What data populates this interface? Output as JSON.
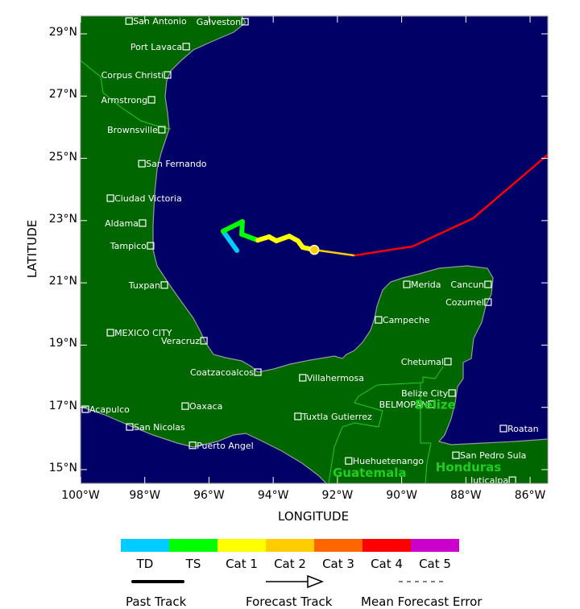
{
  "axes": {
    "xlabel": "LONGITUDE",
    "ylabel": "LATITUDE",
    "lon_range": [
      -100.0,
      -85.45
    ],
    "lat_range": [
      14.56,
      29.57
    ],
    "x_ticks": [
      {
        "lon": -100,
        "label": "100°W"
      },
      {
        "lon": -98,
        "label": "98°W"
      },
      {
        "lon": -96,
        "label": "96°W"
      },
      {
        "lon": -94,
        "label": "94°W"
      },
      {
        "lon": -92,
        "label": "92°W"
      },
      {
        "lon": -90,
        "label": "90°W"
      },
      {
        "lon": -88,
        "label": "88°W"
      },
      {
        "lon": -86,
        "label": "86°W"
      }
    ],
    "y_ticks": [
      {
        "lat": 29,
        "label": "29°N"
      },
      {
        "lat": 27,
        "label": "27°N"
      },
      {
        "lat": 25,
        "label": "25°N"
      },
      {
        "lat": 23,
        "label": "23°N"
      },
      {
        "lat": 21,
        "label": "21°N"
      },
      {
        "lat": 19,
        "label": "19°N"
      },
      {
        "lat": 17,
        "label": "17°N"
      },
      {
        "lat": 15,
        "label": "15°N"
      }
    ]
  },
  "colors": {
    "water": "#000066",
    "land": "#006600",
    "coast": "#9a9a9a",
    "border": "#22cc22",
    "country_label": "#22cc22",
    "city": "#ffffff"
  },
  "countries": [
    {
      "name": "Belize",
      "lon": -88.95,
      "lat": 16.95
    },
    {
      "name": "Guatemala",
      "lon": -91.0,
      "lat": 14.77
    },
    {
      "name": "Honduras",
      "lon": -87.92,
      "lat": 14.95
    }
  ],
  "cities": [
    {
      "name": "San Antonio",
      "lon": -98.49,
      "lat": 29.41
    },
    {
      "name": "Galveston",
      "lon": -94.88,
      "lat": 29.39
    },
    {
      "name": "Port Lavaca",
      "lon": -96.71,
      "lat": 28.59
    },
    {
      "name": "Corpus Christi",
      "lon": -97.29,
      "lat": 27.68
    },
    {
      "name": "Armstrong",
      "lon": -97.79,
      "lat": 26.88
    },
    {
      "name": "Brownsville",
      "lon": -97.47,
      "lat": 25.92
    },
    {
      "name": "San Fernando",
      "lon": -98.09,
      "lat": 24.83
    },
    {
      "name": "Ciudad Victoria",
      "lon": -99.07,
      "lat": 23.72
    },
    {
      "name": "Aldama",
      "lon": -98.07,
      "lat": 22.92
    },
    {
      "name": "Tampico",
      "lon": -97.82,
      "lat": 22.19
    },
    {
      "name": "Tuxpan",
      "lon": -97.39,
      "lat": 20.93
    },
    {
      "name": "MEXICO CITY",
      "lon": -99.07,
      "lat": 19.4
    },
    {
      "name": "Veracruz",
      "lon": -96.16,
      "lat": 19.14
    },
    {
      "name": "Coatzacoalcos",
      "lon": -94.48,
      "lat": 18.13
    },
    {
      "name": "Villahermosa",
      "lon": -93.08,
      "lat": 17.95
    },
    {
      "name": "Acapulco",
      "lon": -99.85,
      "lat": 16.94
    },
    {
      "name": "Oaxaca",
      "lon": -96.74,
      "lat": 17.04
    },
    {
      "name": "San Nicolas",
      "lon": -98.47,
      "lat": 16.37
    },
    {
      "name": "Puerto Angel",
      "lon": -96.51,
      "lat": 15.78
    },
    {
      "name": "Tuxtla Gutierrez",
      "lon": -93.23,
      "lat": 16.71
    },
    {
      "name": "Merida",
      "lon": -89.84,
      "lat": 20.95
    },
    {
      "name": "Cancun",
      "lon": -87.31,
      "lat": 20.95
    },
    {
      "name": "Cozumel",
      "lon": -87.31,
      "lat": 20.38
    },
    {
      "name": "Campeche",
      "lon": -90.72,
      "lat": 19.81
    },
    {
      "name": "Chetumal",
      "lon": -88.56,
      "lat": 18.47
    },
    {
      "name": "Belize City",
      "lon": -88.43,
      "lat": 17.46
    },
    {
      "name": "BELMOPAN",
      "lon": -89.06,
      "lat": 17.1
    },
    {
      "name": "Roatan",
      "lon": -86.83,
      "lat": 16.32
    },
    {
      "name": "San Pedro Sula",
      "lon": -88.31,
      "lat": 15.46
    },
    {
      "name": "Huehuetenango",
      "lon": -91.65,
      "lat": 15.28
    },
    {
      "name": "Juticalpa",
      "lon": -86.55,
      "lat": 14.66
    }
  ],
  "track": {
    "past": [
      {
        "lon": -95.13,
        "lat": 22.04,
        "cat": "TD"
      },
      {
        "lon": -95.56,
        "lat": 22.66,
        "cat": "TS"
      },
      {
        "lon": -94.96,
        "lat": 22.97,
        "cat": "TS"
      },
      {
        "lon": -94.98,
        "lat": 22.56,
        "cat": "TS"
      },
      {
        "lon": -94.48,
        "lat": 22.37,
        "cat": "TS"
      },
      {
        "lon": -94.13,
        "lat": 22.48,
        "cat": "Cat 1"
      },
      {
        "lon": -93.9,
        "lat": 22.35,
        "cat": "Cat 1"
      },
      {
        "lon": -93.5,
        "lat": 22.5,
        "cat": "Cat 1"
      },
      {
        "lon": -93.23,
        "lat": 22.35,
        "cat": "Cat 1"
      },
      {
        "lon": -93.08,
        "lat": 22.14,
        "cat": "Cat 1"
      },
      {
        "lon": -92.72,
        "lat": 22.06,
        "cat": "Cat 1"
      }
    ],
    "current": {
      "lon": -92.72,
      "lat": 22.06,
      "cat": "Cat 2"
    },
    "forecast": [
      {
        "lon": -92.72,
        "lat": 22.06,
        "cat": "Cat 2"
      },
      {
        "lon": -91.47,
        "lat": 21.88,
        "cat": "Cat 3"
      },
      {
        "lon": -89.66,
        "lat": 22.17,
        "cat": "Cat 4"
      },
      {
        "lon": -87.78,
        "lat": 23.07,
        "cat": "Cat 4"
      },
      {
        "lon": -84.9,
        "lat": 25.6,
        "cat": "Cat 4"
      }
    ]
  },
  "legend": {
    "categories": [
      {
        "label": "TD",
        "color": "#00ccff"
      },
      {
        "label": "TS",
        "color": "#00ff00"
      },
      {
        "label": "Cat 1",
        "color": "#ffff00"
      },
      {
        "label": "Cat 2",
        "color": "#ffcc00"
      },
      {
        "label": "Cat 3",
        "color": "#ff6600"
      },
      {
        "label": "Cat 4",
        "color": "#ff0000"
      },
      {
        "label": "Cat 5",
        "color": "#cc00cc"
      }
    ],
    "past_track": "Past Track",
    "forecast_track": "Forecast Track",
    "mean_error": "Mean Forecast Error"
  }
}
